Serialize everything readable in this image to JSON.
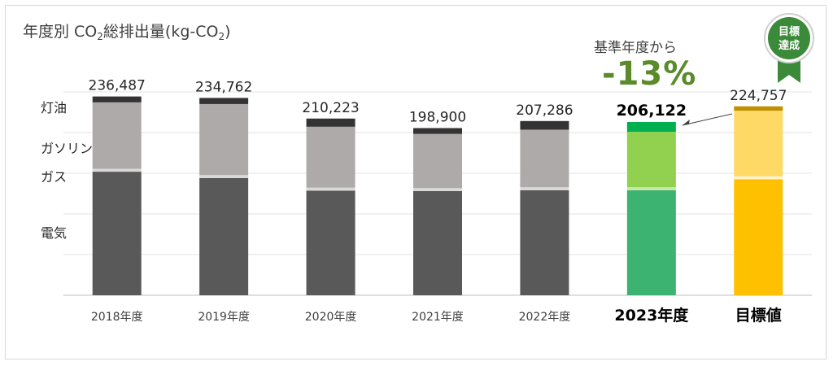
{
  "chart_data": {
    "type": "bar",
    "stacked": true,
    "title": "年度別 CO₂総排出量(kg-CO₂)",
    "title_parts": [
      "年度別 CO",
      "2",
      "総排出量(kg-CO",
      "2",
      ")"
    ],
    "categories": [
      "2018年度",
      "2019年度",
      "2020年度",
      "2021年度",
      "2022年度",
      "2023年度",
      "目標値"
    ],
    "totals": [
      236487,
      234762,
      210223,
      198900,
      207286,
      206122,
      224757
    ],
    "total_labels": [
      "236,487",
      "234,762",
      "210,223",
      "198,900",
      "207,286",
      "206,122",
      "224,757"
    ],
    "series": [
      {
        "name": "電気",
        "values": [
          147000,
          139500,
          124500,
          124000,
          125000,
          125000,
          138000
        ]
      },
      {
        "name": "ガス",
        "values": [
          3500,
          3500,
          3500,
          3500,
          3500,
          3500,
          3500
        ]
      },
      {
        "name": "ガソリン",
        "values": [
          79000,
          84500,
          72500,
          64500,
          68500,
          66000,
          78000
        ]
      },
      {
        "name": "灯油",
        "values": [
          6987,
          7262,
          9723,
          6900,
          10286,
          11622,
          5257
        ]
      }
    ],
    "legend": {
      "placement": "left-inline",
      "order": [
        "灯油",
        "ガソリン",
        "ガス",
        "電気"
      ]
    },
    "ylim": [
      0,
      240000
    ],
    "grid": true,
    "colors": {
      "past": {
        "電気": "#595959",
        "ガス": "#d9d9d9",
        "ガソリン": "#aeaaaa",
        "灯油": "#333333"
      },
      "current": {
        "電気": "#3cb371",
        "ガス": "#c5e8a8",
        "ガソリン": "#92d050",
        "灯油": "#00b050"
      },
      "target": {
        "電気": "#ffc000",
        "ガス": "#fff2cc",
        "ガソリン": "#ffd966",
        "灯油": "#bf9000"
      }
    },
    "highlight_categories": [
      "2023年度",
      "目標値"
    ]
  },
  "annotation": {
    "label": "基準年度から",
    "value": "-13%",
    "color": "#5a8a2a"
  },
  "badge": {
    "line1": "目標",
    "line2": "達成",
    "color": "#3a8a3a"
  }
}
